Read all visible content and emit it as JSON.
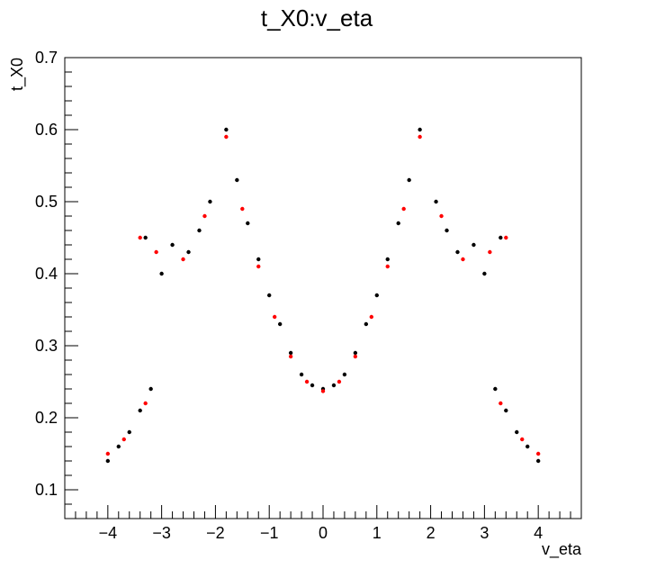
{
  "chart_data": {
    "type": "scatter",
    "title": "t_X0:v_eta",
    "xlabel": "v_eta",
    "ylabel": "t_X0",
    "xlim": [
      -4.8,
      4.8
    ],
    "ylim": [
      0.06,
      0.7
    ],
    "x_ticks": [
      -4,
      -3,
      -2,
      -1,
      0,
      1,
      2,
      3,
      4
    ],
    "x_tick_labels": [
      "−4",
      "−3",
      "−2",
      "−1",
      "0",
      "1",
      "2",
      "3",
      "4"
    ],
    "y_ticks": [
      0.1,
      0.2,
      0.3,
      0.4,
      0.5,
      0.6,
      0.7
    ],
    "y_tick_labels": [
      "0.1",
      "0.2",
      "0.3",
      "0.4",
      "0.5",
      "0.6",
      "0.7"
    ],
    "grid": false,
    "legend": "none",
    "colors": {
      "primary": "#000000",
      "secondary": "#ff0000"
    },
    "series": [
      {
        "color": "#000000",
        "marker": "dot",
        "points": [
          [
            0.0,
            0.24
          ],
          [
            0.2,
            0.245
          ],
          [
            0.4,
            0.26
          ],
          [
            0.6,
            0.29
          ],
          [
            0.8,
            0.33
          ],
          [
            1.0,
            0.37
          ],
          [
            1.2,
            0.42
          ],
          [
            1.4,
            0.47
          ],
          [
            1.6,
            0.53
          ],
          [
            1.8,
            0.6
          ],
          [
            -0.2,
            0.245
          ],
          [
            -0.4,
            0.26
          ],
          [
            -0.6,
            0.29
          ],
          [
            -0.8,
            0.33
          ],
          [
            -1.0,
            0.37
          ],
          [
            -1.2,
            0.42
          ],
          [
            -1.4,
            0.47
          ],
          [
            -1.6,
            0.53
          ],
          [
            -1.8,
            0.6
          ],
          [
            2.1,
            0.5
          ],
          [
            2.3,
            0.46
          ],
          [
            2.5,
            0.43
          ],
          [
            2.8,
            0.44
          ],
          [
            3.0,
            0.4
          ],
          [
            3.3,
            0.45
          ],
          [
            -2.1,
            0.5
          ],
          [
            -2.3,
            0.46
          ],
          [
            -2.5,
            0.43
          ],
          [
            -2.8,
            0.44
          ],
          [
            -3.0,
            0.4
          ],
          [
            -3.3,
            0.45
          ],
          [
            3.2,
            0.24
          ],
          [
            3.4,
            0.21
          ],
          [
            3.6,
            0.18
          ],
          [
            3.8,
            0.16
          ],
          [
            4.0,
            0.14
          ],
          [
            -3.2,
            0.24
          ],
          [
            -3.4,
            0.21
          ],
          [
            -3.6,
            0.18
          ],
          [
            -3.8,
            0.16
          ],
          [
            -4.0,
            0.14
          ]
        ]
      },
      {
        "color": "#ff0000",
        "marker": "dot",
        "points": [
          [
            0.0,
            0.237
          ],
          [
            0.3,
            0.25
          ],
          [
            0.6,
            0.285
          ],
          [
            0.9,
            0.34
          ],
          [
            1.2,
            0.41
          ],
          [
            1.5,
            0.49
          ],
          [
            1.8,
            0.59
          ],
          [
            -0.3,
            0.25
          ],
          [
            -0.6,
            0.285
          ],
          [
            -0.9,
            0.34
          ],
          [
            -1.2,
            0.41
          ],
          [
            -1.5,
            0.49
          ],
          [
            -1.8,
            0.59
          ],
          [
            2.2,
            0.48
          ],
          [
            2.6,
            0.42
          ],
          [
            3.1,
            0.43
          ],
          [
            3.4,
            0.45
          ],
          [
            -2.2,
            0.48
          ],
          [
            -2.6,
            0.42
          ],
          [
            -3.1,
            0.43
          ],
          [
            -3.4,
            0.45
          ],
          [
            3.3,
            0.22
          ],
          [
            3.7,
            0.17
          ],
          [
            4.0,
            0.15
          ],
          [
            -3.3,
            0.22
          ],
          [
            -3.7,
            0.17
          ],
          [
            -4.0,
            0.15
          ]
        ]
      }
    ]
  }
}
